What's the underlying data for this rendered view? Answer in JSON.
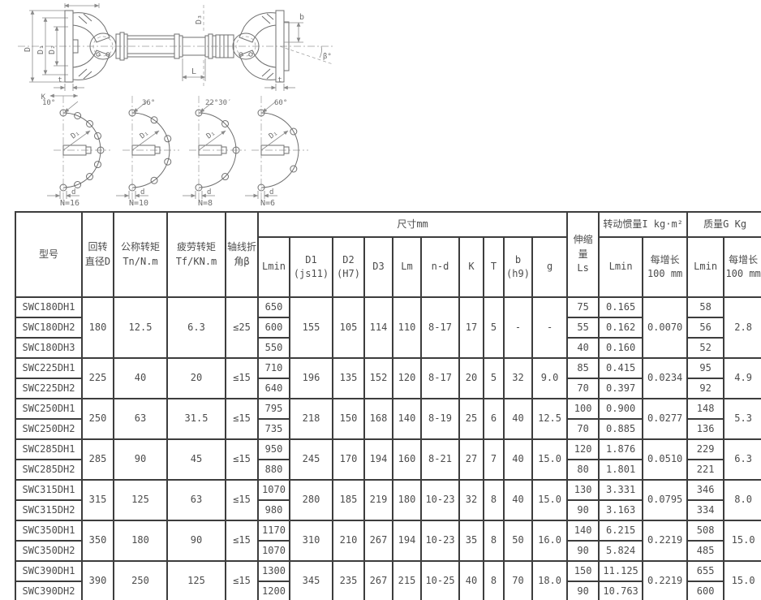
{
  "drawing": {
    "dims": {
      "D": "D",
      "D1": "D₁",
      "D2": "D₂",
      "D3": "D₃",
      "L": "L",
      "b": "b",
      "beta": "β°",
      "t": "t",
      "K": "K",
      "d": "d",
      "bolt_circle": "D₁"
    },
    "patterns": [
      {
        "n": "N=16",
        "angle": "10°"
      },
      {
        "n": "N=10",
        "angle": "36°"
      },
      {
        "n": "N=8",
        "angle": "22°30′"
      },
      {
        "n": "N=6",
        "angle": "60°"
      }
    ]
  },
  "table": {
    "headers": {
      "model": "型号",
      "turn_dia": "回转\n直径D",
      "nominal_torque": "公称转矩\nTn/N.m",
      "fatigue_torque": "疲劳转矩\nTf/KN.m",
      "axis_angle": "轴线折\n角β",
      "size_group": "尺寸mm",
      "lmin": "Lmin",
      "d1": "D1\n(js11)",
      "d2": "D2\n(H7)",
      "d3": "D3",
      "lm": "Lm",
      "nd": "n-d",
      "k": "K",
      "t": "T",
      "b": "b\n(h9)",
      "g": "g",
      "ls": "伸缩\n量\nLs",
      "inertia_group": "转动惯量I kg·m²",
      "mass_group": "质量G Kg",
      "per100": "每增长\n100 mm"
    },
    "groups": [
      {
        "models": [
          "SWC180DH1",
          "SWC180DH2",
          "SWC180DH3"
        ],
        "d": "180",
        "tn": "12.5",
        "tf": "6.3",
        "beta": "≤25",
        "lmin": [
          "650",
          "600",
          "550"
        ],
        "d1": "155",
        "d2": "105",
        "d3": "114",
        "lm": "110",
        "nd": "8-17",
        "k": "17",
        "t": "5",
        "b": "-",
        "g": "-",
        "ls": [
          "75",
          "55",
          "40"
        ],
        "i_lmin": [
          "0.165",
          "0.162",
          "0.160"
        ],
        "i_per100": "0.0070",
        "g_lmin": [
          "58",
          "56",
          "52"
        ],
        "g_per100": "2.8"
      },
      {
        "models": [
          "SWC225DH1",
          "SWC225DH2"
        ],
        "d": "225",
        "tn": "40",
        "tf": "20",
        "beta": "≤15",
        "lmin": [
          "710",
          "640"
        ],
        "d1": "196",
        "d2": "135",
        "d3": "152",
        "lm": "120",
        "nd": "8-17",
        "k": "20",
        "t": "5",
        "b": "32",
        "g": "9.0",
        "ls": [
          "85",
          "70"
        ],
        "i_lmin": [
          "0.415",
          "0.397"
        ],
        "i_per100": "0.0234",
        "g_lmin": [
          "95",
          "92"
        ],
        "g_per100": "4.9"
      },
      {
        "models": [
          "SWC250DH1",
          "SWC250DH2"
        ],
        "d": "250",
        "tn": "63",
        "tf": "31.5",
        "beta": "≤15",
        "lmin": [
          "795",
          "735"
        ],
        "d1": "218",
        "d2": "150",
        "d3": "168",
        "lm": "140",
        "nd": "8-19",
        "k": "25",
        "t": "6",
        "b": "40",
        "g": "12.5",
        "ls": [
          "100",
          "70"
        ],
        "i_lmin": [
          "0.900",
          "0.885"
        ],
        "i_per100": "0.0277",
        "g_lmin": [
          "148",
          "136"
        ],
        "g_per100": "5.3"
      },
      {
        "models": [
          "SWC285DH1",
          "SWC285DH2"
        ],
        "d": "285",
        "tn": "90",
        "tf": "45",
        "beta": "≤15",
        "lmin": [
          "950",
          "880"
        ],
        "d1": "245",
        "d2": "170",
        "d3": "194",
        "lm": "160",
        "nd": "8-21",
        "k": "27",
        "t": "7",
        "b": "40",
        "g": "15.0",
        "ls": [
          "120",
          "80"
        ],
        "i_lmin": [
          "1.876",
          "1.801"
        ],
        "i_per100": "0.0510",
        "g_lmin": [
          "229",
          "221"
        ],
        "g_per100": "6.3"
      },
      {
        "models": [
          "SWC315DH1",
          "SWC315DH2"
        ],
        "d": "315",
        "tn": "125",
        "tf": "63",
        "beta": "≤15",
        "lmin": [
          "1070",
          "980"
        ],
        "d1": "280",
        "d2": "185",
        "d3": "219",
        "lm": "180",
        "nd": "10-23",
        "k": "32",
        "t": "8",
        "b": "40",
        "g": "15.0",
        "ls": [
          "130",
          "90"
        ],
        "i_lmin": [
          "3.331",
          "3.163"
        ],
        "i_per100": "0.0795",
        "g_lmin": [
          "346",
          "334"
        ],
        "g_per100": "8.0"
      },
      {
        "models": [
          "SWC350DH1",
          "SWC350DH2"
        ],
        "d": "350",
        "tn": "180",
        "tf": "90",
        "beta": "≤15",
        "lmin": [
          "1170",
          "1070"
        ],
        "d1": "310",
        "d2": "210",
        "d3": "267",
        "lm": "194",
        "nd": "10-23",
        "k": "35",
        "t": "8",
        "b": "50",
        "g": "16.0",
        "ls": [
          "140",
          "90"
        ],
        "i_lmin": [
          "6.215",
          "5.824"
        ],
        "i_per100": "0.2219",
        "g_lmin": [
          "508",
          "485"
        ],
        "g_per100": "15.0"
      },
      {
        "models": [
          "SWC390DH1",
          "SWC390DH2"
        ],
        "d": "390",
        "tn": "250",
        "tf": "125",
        "beta": "≤15",
        "lmin": [
          "1300",
          "1200"
        ],
        "d1": "345",
        "d2": "235",
        "d3": "267",
        "lm": "215",
        "nd": "10-25",
        "k": "40",
        "t": "8",
        "b": "70",
        "g": "18.0",
        "ls": [
          "150",
          "90"
        ],
        "i_lmin": [
          "11.125",
          "10.763"
        ],
        "i_per100": "0.2219",
        "g_lmin": [
          "655",
          "600"
        ],
        "g_per100": "15.0"
      }
    ]
  }
}
